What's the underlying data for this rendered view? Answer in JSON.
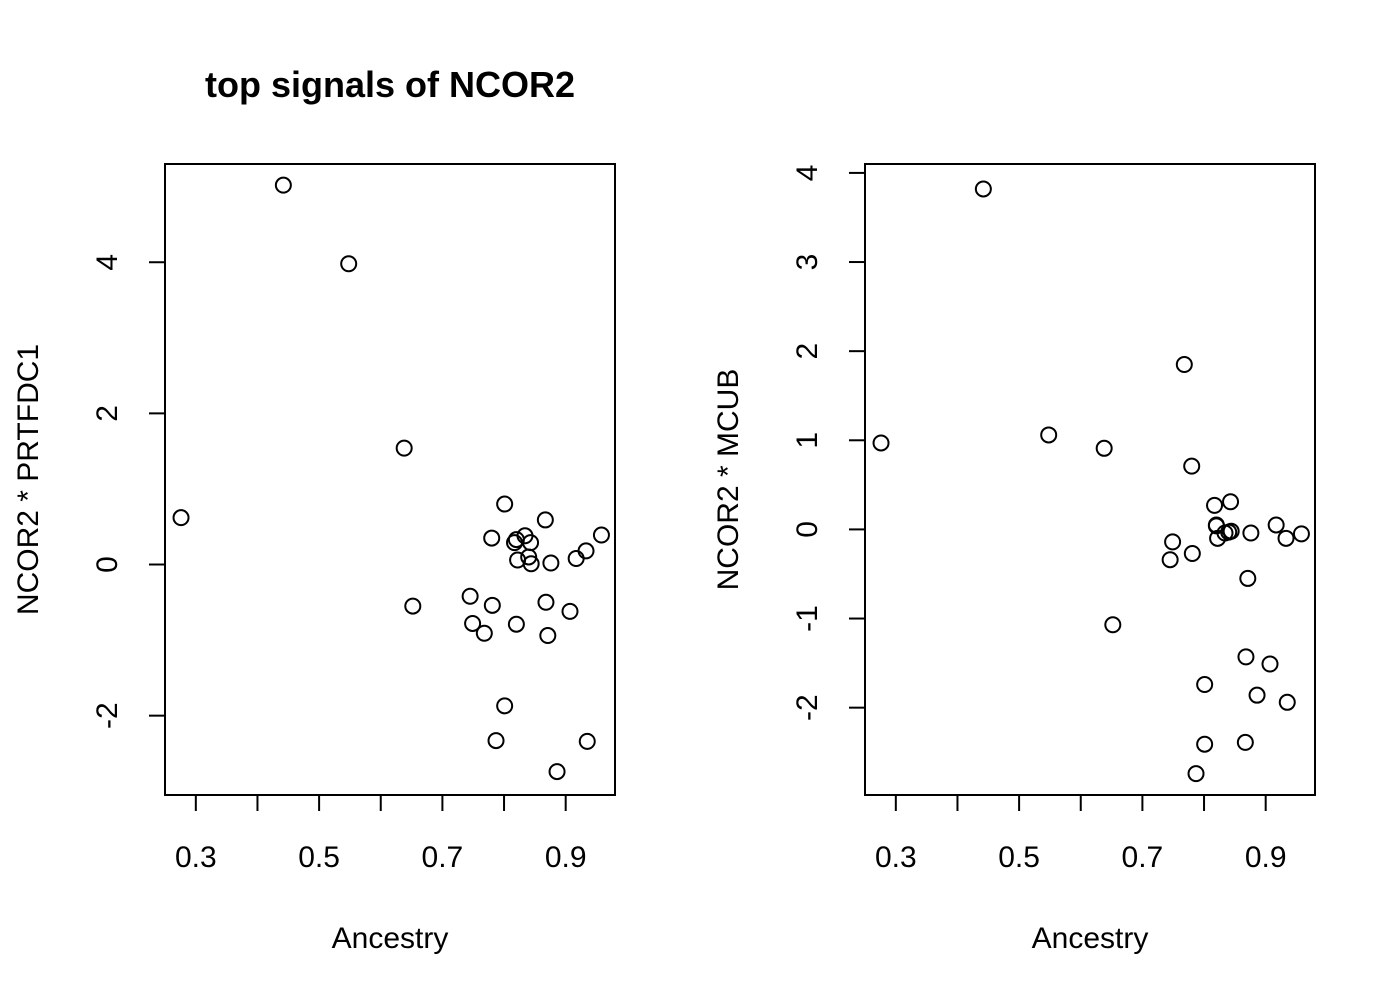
{
  "figure": {
    "title": "top signals of NCOR2"
  },
  "chart_data": [
    {
      "type": "scatter",
      "title": "top signals of NCOR2",
      "xlabel": "Ancestry",
      "ylabel": "NCOR2 * PRTFDC1",
      "xlim": [
        0.25,
        0.98
      ],
      "ylim": [
        -3.05,
        5.3
      ],
      "x_ticks": [
        0.3,
        0.4,
        0.5,
        0.6,
        0.7,
        0.8,
        0.9
      ],
      "x_tick_labels": [
        "0.3",
        "",
        "0.5",
        "",
        "0.7",
        "",
        "0.9"
      ],
      "y_ticks": [
        -2,
        0,
        2,
        4
      ],
      "y_tick_labels": [
        "-2",
        "0",
        "2",
        "4"
      ],
      "grid": false,
      "points": [
        {
          "x": 0.276,
          "y": 0.62
        },
        {
          "x": 0.442,
          "y": 5.02
        },
        {
          "x": 0.548,
          "y": 3.98
        },
        {
          "x": 0.638,
          "y": 1.54
        },
        {
          "x": 0.652,
          "y": -0.55
        },
        {
          "x": 0.745,
          "y": -0.42
        },
        {
          "x": 0.749,
          "y": -0.78
        },
        {
          "x": 0.768,
          "y": -0.91
        },
        {
          "x": 0.78,
          "y": 0.35
        },
        {
          "x": 0.781,
          "y": -0.54
        },
        {
          "x": 0.787,
          "y": -2.33
        },
        {
          "x": 0.801,
          "y": 0.8
        },
        {
          "x": 0.801,
          "y": -1.87
        },
        {
          "x": 0.817,
          "y": 0.29
        },
        {
          "x": 0.82,
          "y": 0.33
        },
        {
          "x": 0.82,
          "y": -0.79
        },
        {
          "x": 0.822,
          "y": 0.06
        },
        {
          "x": 0.834,
          "y": 0.38
        },
        {
          "x": 0.84,
          "y": 0.1
        },
        {
          "x": 0.843,
          "y": 0.29
        },
        {
          "x": 0.844,
          "y": 0.01
        },
        {
          "x": 0.867,
          "y": 0.59
        },
        {
          "x": 0.868,
          "y": -0.5
        },
        {
          "x": 0.871,
          "y": -0.94
        },
        {
          "x": 0.876,
          "y": 0.02
        },
        {
          "x": 0.886,
          "y": -2.74
        },
        {
          "x": 0.907,
          "y": -0.62
        },
        {
          "x": 0.917,
          "y": 0.08
        },
        {
          "x": 0.933,
          "y": 0.18
        },
        {
          "x": 0.935,
          "y": -2.34
        },
        {
          "x": 0.958,
          "y": 0.39
        }
      ]
    },
    {
      "type": "scatter",
      "title": "",
      "xlabel": "Ancestry",
      "ylabel": "NCOR2 * MCUB",
      "xlim": [
        0.25,
        0.98
      ],
      "ylim": [
        -2.98,
        4.1
      ],
      "x_ticks": [
        0.3,
        0.4,
        0.5,
        0.6,
        0.7,
        0.8,
        0.9
      ],
      "x_tick_labels": [
        "0.3",
        "",
        "0.5",
        "",
        "0.7",
        "",
        "0.9"
      ],
      "y_ticks": [
        -2,
        -1,
        0,
        1,
        2,
        3,
        4
      ],
      "y_tick_labels": [
        "-2",
        "-1",
        "0",
        "1",
        "2",
        "3",
        "4"
      ],
      "grid": false,
      "points": [
        {
          "x": 0.276,
          "y": 0.97
        },
        {
          "x": 0.442,
          "y": 3.82
        },
        {
          "x": 0.548,
          "y": 1.06
        },
        {
          "x": 0.638,
          "y": 0.91
        },
        {
          "x": 0.652,
          "y": -1.07
        },
        {
          "x": 0.745,
          "y": -0.34
        },
        {
          "x": 0.749,
          "y": -0.14
        },
        {
          "x": 0.768,
          "y": 1.85
        },
        {
          "x": 0.78,
          "y": 0.71
        },
        {
          "x": 0.781,
          "y": -0.27
        },
        {
          "x": 0.787,
          "y": -2.74
        },
        {
          "x": 0.801,
          "y": -1.74
        },
        {
          "x": 0.801,
          "y": -2.41
        },
        {
          "x": 0.817,
          "y": 0.27
        },
        {
          "x": 0.82,
          "y": 0.05
        },
        {
          "x": 0.82,
          "y": 0.04
        },
        {
          "x": 0.822,
          "y": -0.1
        },
        {
          "x": 0.834,
          "y": -0.04
        },
        {
          "x": 0.84,
          "y": -0.03
        },
        {
          "x": 0.843,
          "y": 0.31
        },
        {
          "x": 0.844,
          "y": -0.02
        },
        {
          "x": 0.867,
          "y": -2.39
        },
        {
          "x": 0.868,
          "y": -1.43
        },
        {
          "x": 0.871,
          "y": -0.55
        },
        {
          "x": 0.876,
          "y": -0.04
        },
        {
          "x": 0.886,
          "y": -1.86
        },
        {
          "x": 0.907,
          "y": -1.51
        },
        {
          "x": 0.917,
          "y": 0.05
        },
        {
          "x": 0.933,
          "y": -0.1
        },
        {
          "x": 0.935,
          "y": -1.94
        },
        {
          "x": 0.958,
          "y": -0.05
        }
      ]
    }
  ]
}
